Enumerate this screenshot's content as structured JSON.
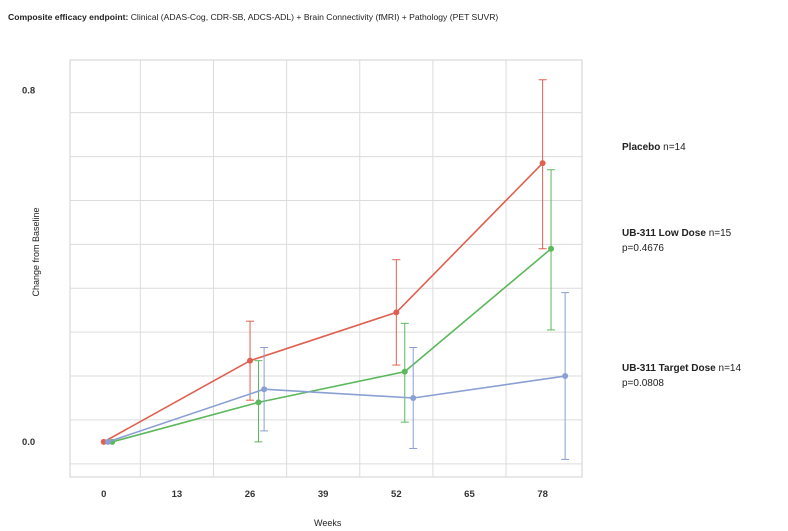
{
  "title": {
    "bold": "Composite efficacy endpoint:",
    "rest": "Clinical (ADAS-Cog, CDR-SB, ADCS-ADL) + Brain Connectivity (fMRI) + Pathology (PET SUVR)"
  },
  "legend": [
    {
      "name": "Placebo",
      "n": "n=14",
      "p": ""
    },
    {
      "name": "UB-311 Low Dose",
      "n": "n=15",
      "p": "p=0.4676"
    },
    {
      "name": "UB-311 Target Dose",
      "n": "n=14",
      "p": "p=0.0808"
    }
  ],
  "chart_data": {
    "type": "line",
    "title": "Composite efficacy endpoint: Clinical (ADAS-Cog, CDR-SB, ADCS-ADL) + Brain Connectivity (fMRI) + Pathology (PET SUVR)",
    "xlabel": "Weeks",
    "ylabel": "Change from Baseline",
    "x_ticks": [
      0,
      13,
      26,
      39,
      52,
      65,
      78
    ],
    "y_ticks": [
      {
        "value": 0.0,
        "label": "0.0"
      },
      {
        "value": 0.8,
        "label": "0.8"
      }
    ],
    "xlim": [
      -6,
      85
    ],
    "ylim": [
      -0.08,
      0.87
    ],
    "grid": true,
    "series": [
      {
        "name": "Placebo",
        "color": "#e06050",
        "points": [
          {
            "x": 0,
            "y": 0.0,
            "err_low": 0.0,
            "err_high": 0.0
          },
          {
            "x": 26,
            "y": 0.185,
            "err_low": 0.095,
            "err_high": 0.275
          },
          {
            "x": 52,
            "y": 0.295,
            "err_low": 0.175,
            "err_high": 0.415
          },
          {
            "x": 78,
            "y": 0.635,
            "err_low": 0.44,
            "err_high": 0.825
          }
        ]
      },
      {
        "name": "UB-311 Low Dose",
        "color": "#5cb85c",
        "points": [
          {
            "x": 1.5,
            "y": 0.0,
            "err_low": 0.0,
            "err_high": 0.0
          },
          {
            "x": 27.5,
            "y": 0.09,
            "err_low": 0.0,
            "err_high": 0.185
          },
          {
            "x": 53.5,
            "y": 0.16,
            "err_low": 0.045,
            "err_high": 0.27
          },
          {
            "x": 79.5,
            "y": 0.44,
            "err_low": 0.255,
            "err_high": 0.62
          }
        ]
      },
      {
        "name": "UB-311 Target Dose",
        "color": "#8a9fd4",
        "points": [
          {
            "x": 0.75,
            "y": 0.0,
            "err_low": 0.0,
            "err_high": 0.0
          },
          {
            "x": 28.5,
            "y": 0.12,
            "err_low": 0.025,
            "err_high": 0.215
          },
          {
            "x": 55,
            "y": 0.1,
            "err_low": -0.015,
            "err_high": 0.215
          },
          {
            "x": 82,
            "y": 0.15,
            "err_low": -0.04,
            "err_high": 0.34
          }
        ]
      }
    ]
  }
}
